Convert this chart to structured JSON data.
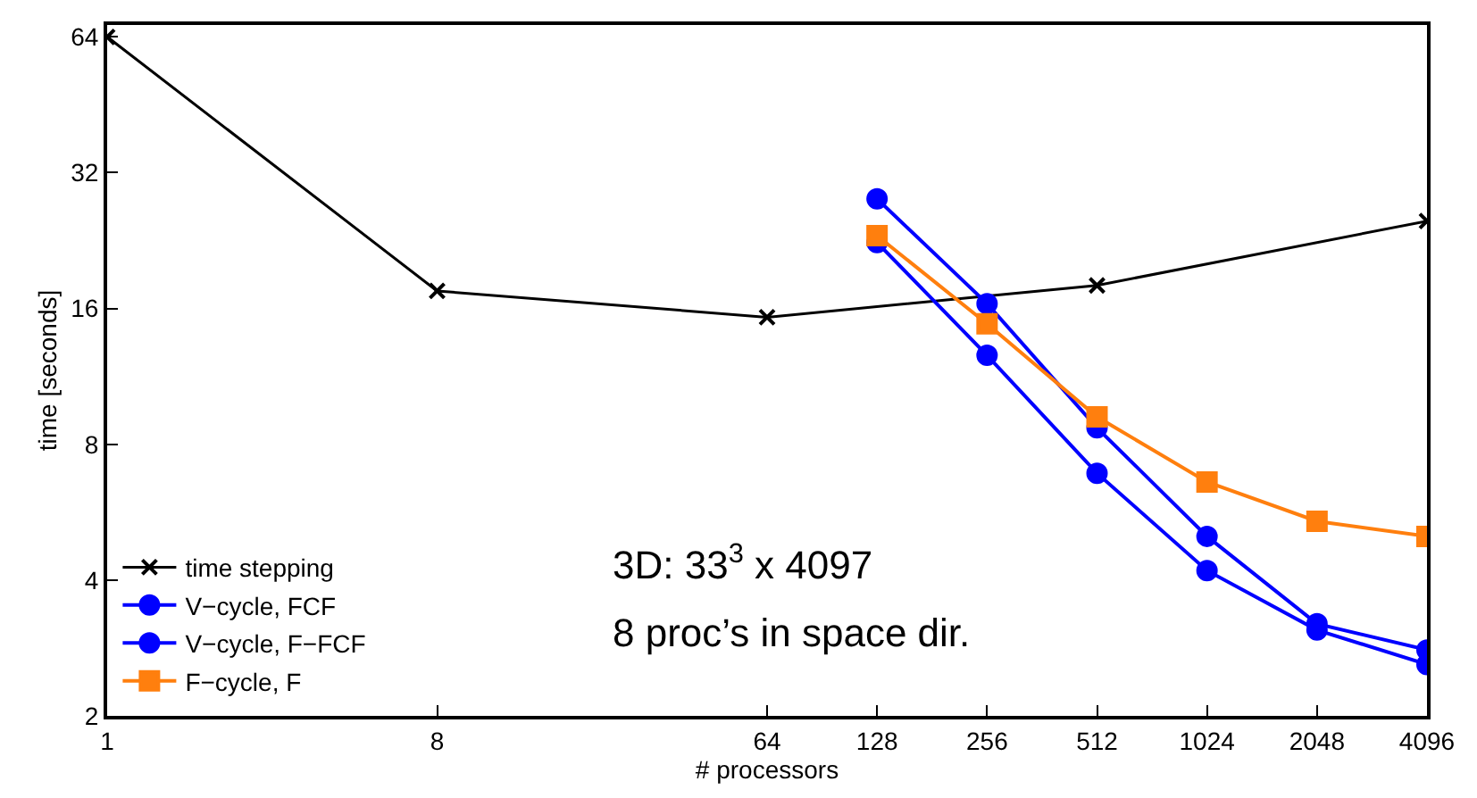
{
  "chart_data": {
    "type": "line",
    "xlabel": "# processors",
    "ylabel": "time [seconds]",
    "log": "xy",
    "xlim": [
      1,
      4096
    ],
    "ylim": [
      2,
      68
    ],
    "xticks": [
      1,
      8,
      64,
      128,
      256,
      512,
      1024,
      2048,
      4096
    ],
    "yticks": [
      2,
      4,
      8,
      16,
      32,
      64
    ],
    "legend": "bottom left",
    "line_style": "solid",
    "series": [
      {
        "name": "time stepping",
        "color": "#000000",
        "marker": "cross",
        "x": [
          1,
          8,
          64,
          512,
          4096
        ],
        "values": [
          64,
          17.5,
          15.3,
          18,
          25
        ]
      },
      {
        "name": "V−cycle, FCF",
        "color": "#0000ff",
        "marker": "circle",
        "x": [
          128,
          256,
          512,
          1024,
          2048,
          4096
        ],
        "values": [
          28,
          16.4,
          8.7,
          5,
          3.2,
          2.8
        ]
      },
      {
        "name": "V−cycle, F−FCF",
        "color": "#0000ff",
        "marker": "circle",
        "x": [
          128,
          256,
          512,
          1024,
          2048,
          4096
        ],
        "values": [
          22.4,
          12.6,
          6.9,
          4.2,
          3.1,
          2.6
        ]
      },
      {
        "name": "F−cycle, F",
        "color": "#ff7f0e",
        "marker": "square",
        "x": [
          128,
          256,
          512,
          1024,
          2048,
          4096
        ],
        "values": [
          23.2,
          14.8,
          9.2,
          6.6,
          5.4,
          5
        ]
      }
    ],
    "annotations": [
      "3D: 33$^{3}$ x 4097",
      "8 proc’s in space dir."
    ]
  }
}
